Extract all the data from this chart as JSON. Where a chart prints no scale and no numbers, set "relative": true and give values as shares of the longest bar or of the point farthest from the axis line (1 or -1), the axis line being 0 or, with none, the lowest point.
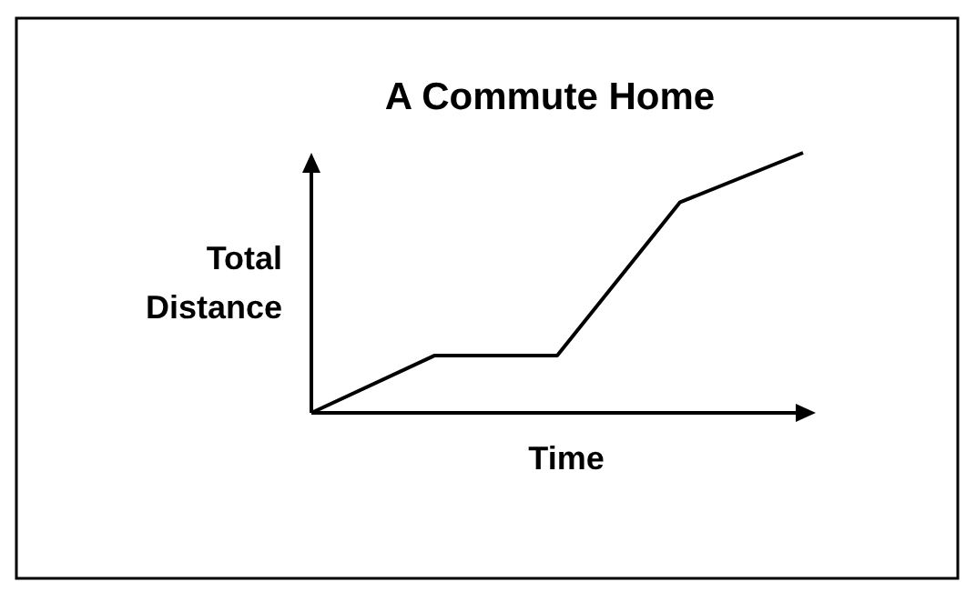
{
  "chart_data": {
    "type": "line",
    "title": "A Commute Home",
    "xlabel": "Time",
    "ylabel": "Total Distance",
    "relative": true,
    "categories": [
      null,
      null,
      null,
      null,
      null
    ],
    "series": [
      {
        "color": "#000000",
        "values": [
          0,
          0.22,
          0.22,
          0.81,
          1
        ]
      }
    ],
    "marker": "none",
    "line_style": "solid"
  }
}
